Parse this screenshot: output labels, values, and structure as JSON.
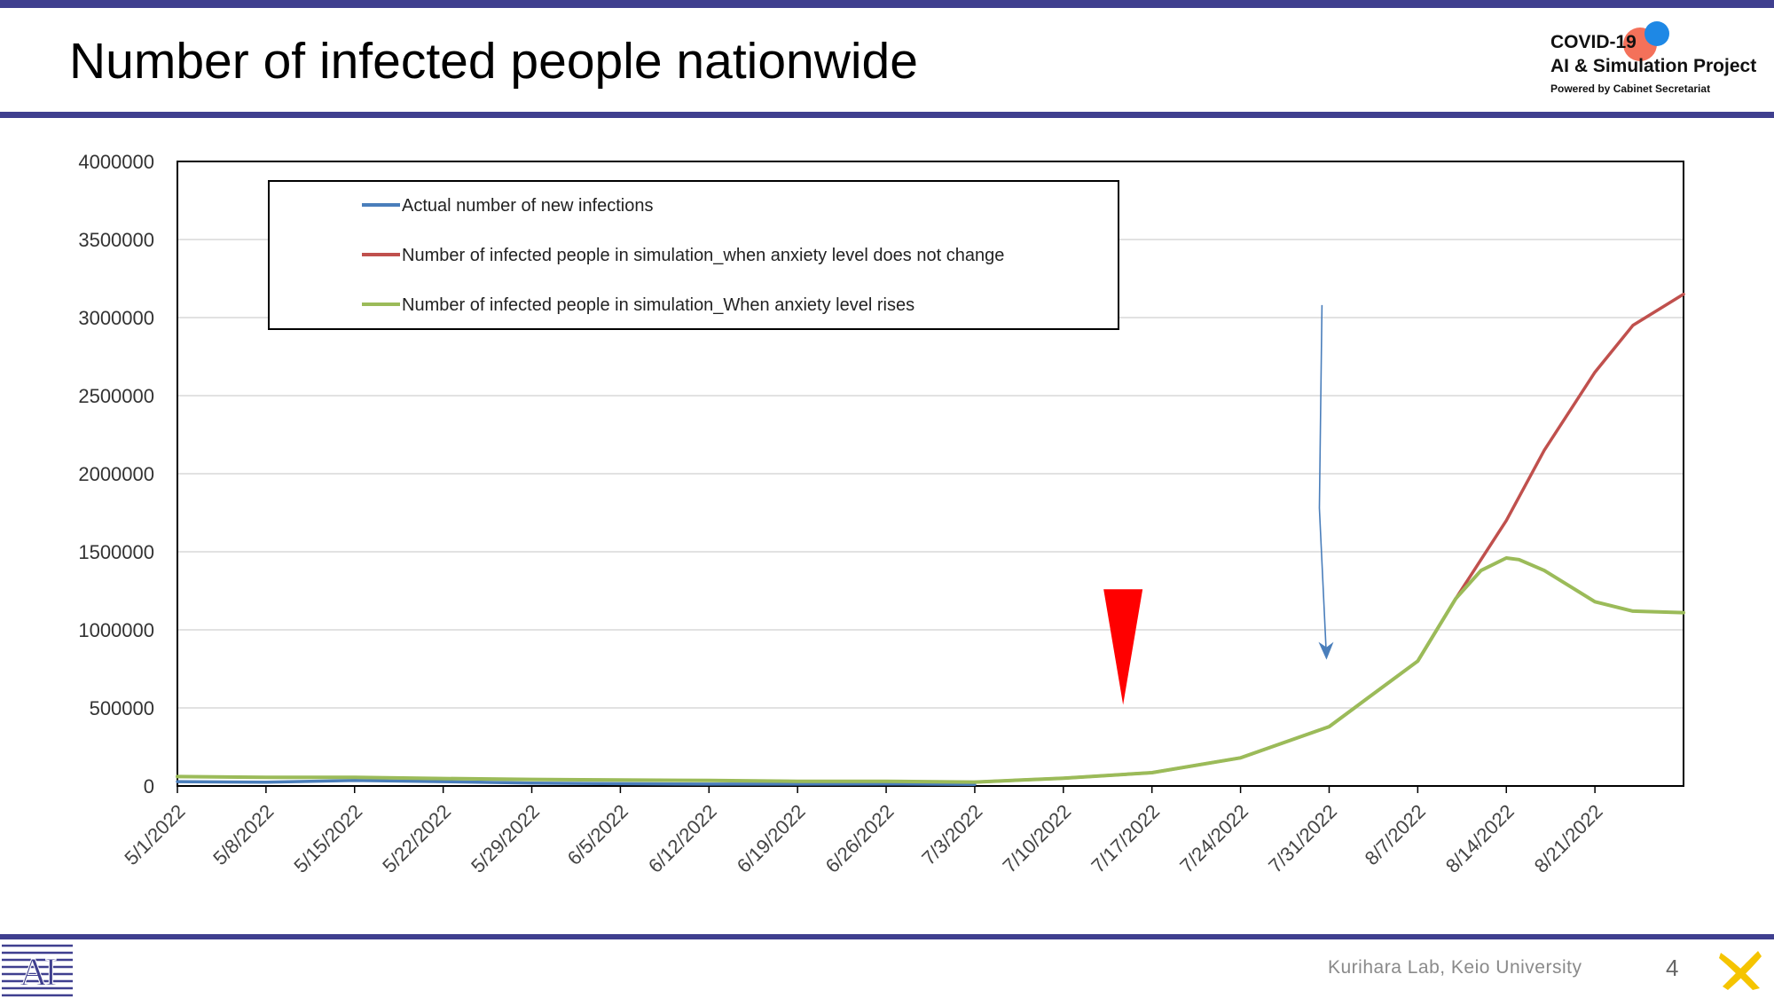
{
  "slide": {
    "title": "Number of infected people nationwide",
    "logo": {
      "line1": "COVID-19",
      "line2": "AI & Simulation Project",
      "line3": "Powered by Cabinet Secretariat"
    },
    "footer": "Kurihara Lab, Keio University",
    "page_number": "4"
  },
  "chart_data": {
    "type": "line",
    "ylim": [
      0,
      4000000
    ],
    "yticks": [
      0,
      500000,
      1000000,
      1500000,
      2000000,
      2500000,
      3000000,
      3500000,
      4000000
    ],
    "ytick_labels": [
      "0",
      "500000",
      "1000000",
      "1500000",
      "2000000",
      "2500000",
      "3000000",
      "3500000",
      "4000000"
    ],
    "x_start": "5/1/2022",
    "x_end": "8/28/2022",
    "xtick_labels": [
      "5/1/2022",
      "5/8/2022",
      "5/15/2022",
      "5/22/2022",
      "5/29/2022",
      "6/5/2022",
      "6/12/2022",
      "6/19/2022",
      "6/26/2022",
      "7/3/2022",
      "7/10/2022",
      "7/17/2022",
      "7/24/2022",
      "7/31/2022",
      "8/7/2022",
      "8/14/2022",
      "8/21/2022"
    ],
    "legend": {
      "placement": "top-left",
      "entries": [
        {
          "label": "Actual number of new infections",
          "color": "#4a7ebb"
        },
        {
          "label": "Number of infected people in simulation_when anxiety level does not change",
          "color": "#c0504d"
        },
        {
          "label": "Number of infected people in simulation_When anxiety level rises",
          "color": "#9bbb59"
        }
      ]
    },
    "grid": true,
    "series": [
      {
        "color": "#4a7ebb",
        "x": [
          "5/1/2022",
          "5/8/2022",
          "5/15/2022",
          "5/22/2022",
          "5/29/2022",
          "6/5/2022",
          "6/12/2022",
          "6/19/2022",
          "6/26/2022",
          "7/3/2022"
        ],
        "values": [
          28000,
          24000,
          35000,
          28000,
          18000,
          15000,
          12000,
          12000,
          13000,
          10000
        ]
      },
      {
        "color": "#c0504d",
        "x": [
          "7/3/2022",
          "7/10/2022",
          "7/17/2022",
          "7/24/2022",
          "7/31/2022",
          "8/3/2022",
          "8/7/2022",
          "8/10/2022",
          "8/14/2022",
          "8/17/2022",
          "8/21/2022",
          "8/24/2022",
          "8/28/2022"
        ],
        "values": [
          25000,
          50000,
          85000,
          180000,
          380000,
          560000,
          800000,
          1200000,
          1700000,
          2150000,
          2650000,
          2950000,
          3150000
        ]
      },
      {
        "color": "#9bbb59",
        "x": [
          "5/1/2022",
          "5/8/2022",
          "5/15/2022",
          "5/22/2022",
          "5/29/2022",
          "6/5/2022",
          "6/12/2022",
          "6/19/2022",
          "6/26/2022",
          "7/3/2022",
          "7/10/2022",
          "7/17/2022",
          "7/24/2022",
          "7/31/2022",
          "8/3/2022",
          "8/7/2022",
          "8/10/2022",
          "8/12/2022",
          "8/14/2022",
          "8/15/2022",
          "8/17/2022",
          "8/19/2022",
          "8/21/2022",
          "8/24/2022",
          "8/28/2022"
        ],
        "values": [
          60000,
          55000,
          55000,
          48000,
          42000,
          38000,
          35000,
          30000,
          30000,
          25000,
          50000,
          85000,
          180000,
          380000,
          560000,
          800000,
          1200000,
          1380000,
          1460000,
          1450000,
          1380000,
          1280000,
          1180000,
          1120000,
          1110000
        ]
      }
    ],
    "annotations": [
      {
        "type": "arrow",
        "from": [
          "7/27/2022",
          3080000
        ],
        "via": [
          "7/31/2022",
          1780000
        ],
        "to": [
          "7/31/2022",
          820000
        ],
        "color": "#4a7ebb"
      },
      {
        "type": "triangle-marker",
        "x": "7/15/2022",
        "y_top": 1260000,
        "y_bottom": 520000,
        "color": "#ff0000"
      }
    ]
  }
}
